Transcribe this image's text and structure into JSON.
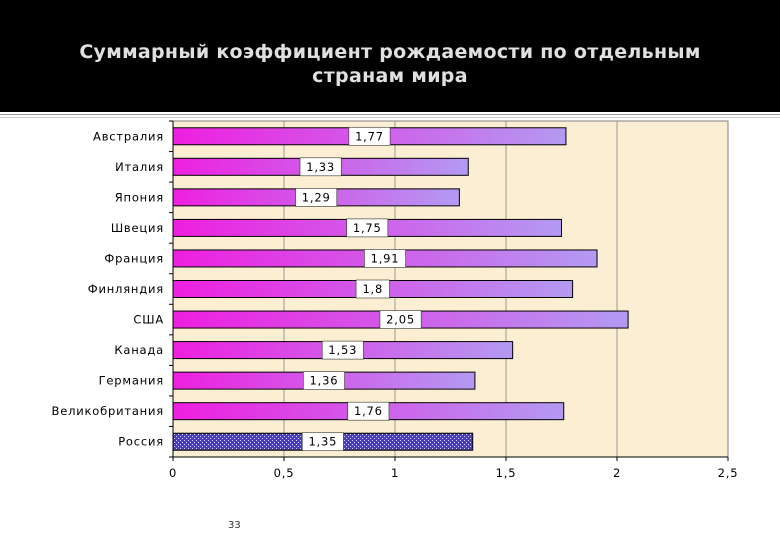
{
  "slide": {
    "title": "Суммарный коэффициент рождаемости по отдельным странам мира",
    "page_number": "33"
  },
  "colors": {
    "plot_background": "#fbeed2",
    "bar_gradient_start": "#ee1fe0",
    "bar_gradient_end": "#b39af2",
    "highlight_bar": "#4b3fb8",
    "gridline": "#9a9a9a"
  },
  "chart_data": {
    "type": "bar",
    "orientation": "horizontal",
    "title": "Суммарный коэффициент рождаемости по отдельным странам мира",
    "xlabel": "",
    "ylabel": "",
    "xlim": [
      0,
      2.5
    ],
    "x_ticks": [
      "0",
      "0,5",
      "1",
      "1,5",
      "2",
      "2,5"
    ],
    "x_tick_values": [
      0,
      0.5,
      1,
      1.5,
      2,
      2.5
    ],
    "grid": true,
    "legend": "none",
    "categories": [
      "Австралия",
      "Италия",
      "Япония",
      "Швеция",
      "Франция",
      "Финляндия",
      "США",
      "Канада",
      "Германия",
      "Великобритания",
      "Россия"
    ],
    "values": [
      1.77,
      1.33,
      1.29,
      1.75,
      1.91,
      1.8,
      2.05,
      1.53,
      1.36,
      1.76,
      1.35
    ],
    "value_labels": [
      "1,77",
      "1,33",
      "1,29",
      "1,75",
      "1,91",
      "1,8",
      "2,05",
      "1,53",
      "1,36",
      "1,76",
      "1,35"
    ],
    "highlighted_category": "Россия"
  }
}
